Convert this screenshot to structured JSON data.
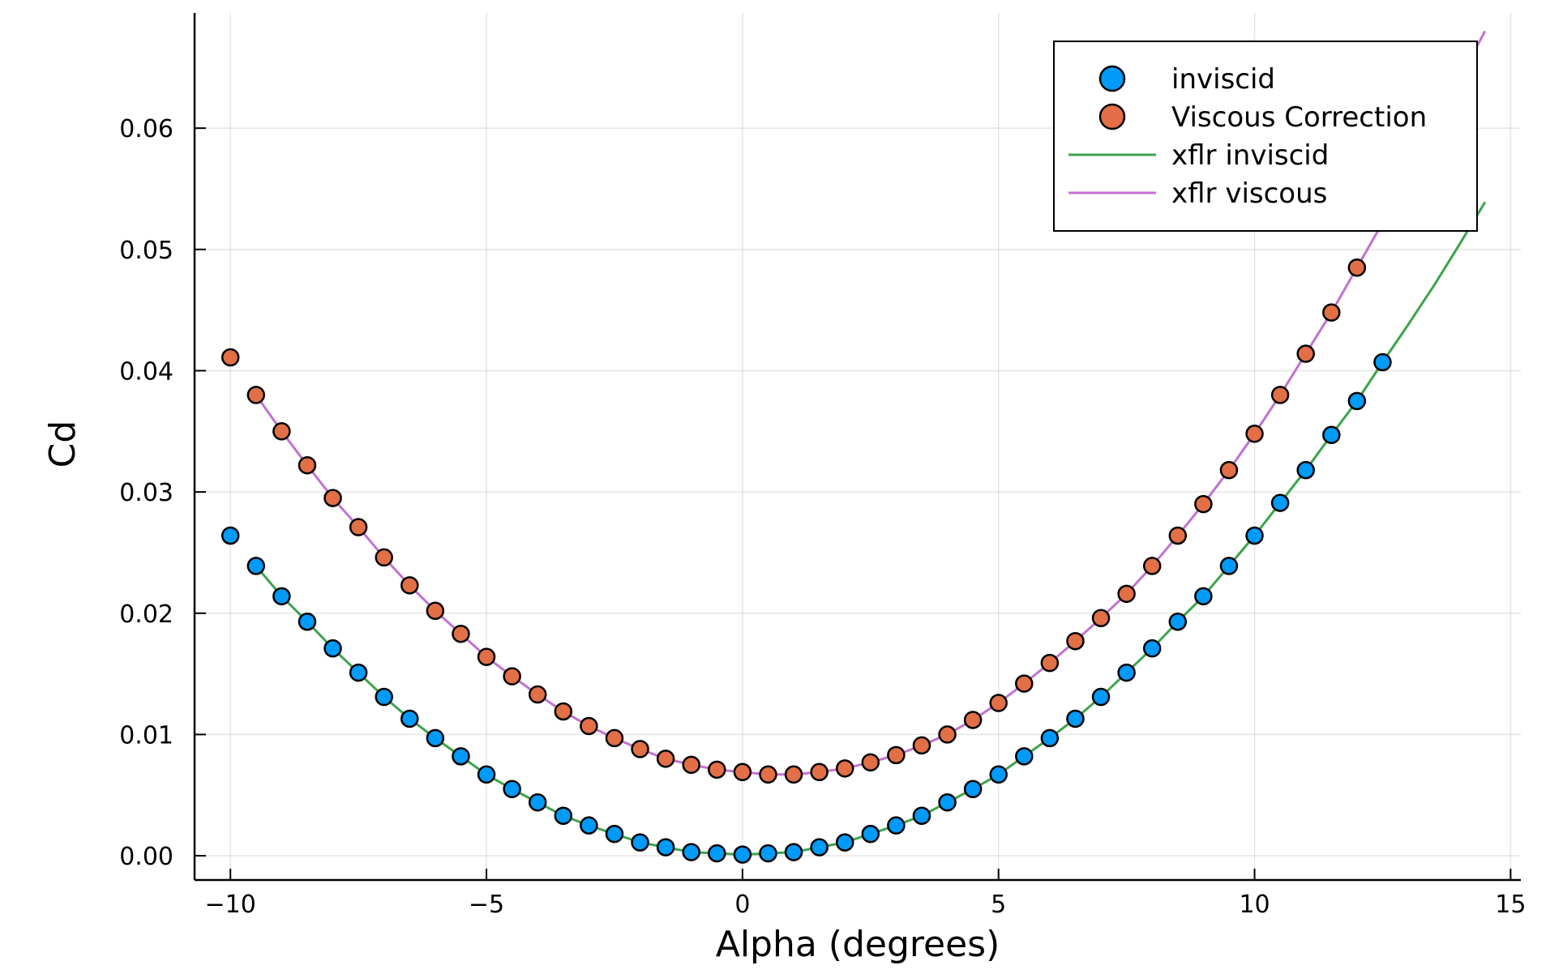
{
  "chart_data": {
    "type": "scatter",
    "xlabel": "Alpha (degrees)",
    "ylabel": "Cd",
    "xlim": [
      -10.7,
      15.2
    ],
    "ylim": [
      -0.002,
      0.0695
    ],
    "xticks": [
      -10,
      -5,
      0,
      5,
      10,
      15
    ],
    "xtick_labels": [
      "−10",
      "−5",
      "0",
      "5",
      "10",
      "15"
    ],
    "yticks": [
      0.0,
      0.01,
      0.02,
      0.03,
      0.04,
      0.05,
      0.06
    ],
    "ytick_labels": [
      "0.00",
      "0.01",
      "0.02",
      "0.03",
      "0.04",
      "0.05",
      "0.06"
    ],
    "grid": true,
    "legend_position": "top-right",
    "series": [
      {
        "name": "inviscid",
        "kind": "scatter",
        "color": "#009AF9",
        "x": [
          -10,
          -9.5,
          -9,
          -8.5,
          -8,
          -7.5,
          -7,
          -6.5,
          -6,
          -5.5,
          -5,
          -4.5,
          -4,
          -3.5,
          -3,
          -2.5,
          -2,
          -1.5,
          -1,
          -0.5,
          0,
          0.5,
          1,
          1.5,
          2,
          2.5,
          3,
          3.5,
          4,
          4.5,
          5,
          5.5,
          6,
          6.5,
          7,
          7.5,
          8,
          8.5,
          9,
          9.5,
          10,
          10.5,
          11,
          11.5,
          12,
          12.5
        ],
        "y": [
          0.0264,
          0.0239,
          0.0214,
          0.0193,
          0.0171,
          0.0151,
          0.0131,
          0.0113,
          0.0097,
          0.0082,
          0.0067,
          0.0055,
          0.0044,
          0.0033,
          0.0025,
          0.0018,
          0.0011,
          0.0007,
          0.0003,
          0.0002,
          0.0001,
          0.0002,
          0.0003,
          0.0007,
          0.0011,
          0.0018,
          0.0025,
          0.0033,
          0.0044,
          0.0055,
          0.0067,
          0.0082,
          0.0097,
          0.0113,
          0.0131,
          0.0151,
          0.0171,
          0.0193,
          0.0214,
          0.0239,
          0.0264,
          0.0291,
          0.0318,
          0.0347,
          0.0375,
          0.0407
        ]
      },
      {
        "name": "Viscous Correction",
        "kind": "scatter",
        "color": "#E26F46",
        "x": [
          -10,
          -9.5,
          -9,
          -8.5,
          -8,
          -7.5,
          -7,
          -6.5,
          -6,
          -5.5,
          -5,
          -4.5,
          -4,
          -3.5,
          -3,
          -2.5,
          -2,
          -1.5,
          -1,
          -0.5,
          0,
          0.5,
          1,
          1.5,
          2,
          2.5,
          3,
          3.5,
          4,
          4.5,
          5,
          5.5,
          6,
          6.5,
          7,
          7.5,
          8,
          8.5,
          9,
          9.5,
          10,
          10.5,
          11,
          11.5,
          12,
          12.5
        ],
        "y": [
          0.0411,
          0.038,
          0.035,
          0.0322,
          0.0295,
          0.0271,
          0.0246,
          0.0223,
          0.0202,
          0.0183,
          0.0164,
          0.0148,
          0.0133,
          0.0119,
          0.0107,
          0.0097,
          0.0088,
          0.008,
          0.0075,
          0.0071,
          0.0069,
          0.0067,
          0.0067,
          0.0069,
          0.0072,
          0.0077,
          0.0083,
          0.0091,
          0.01,
          0.0112,
          0.0126,
          0.0142,
          0.0159,
          0.0177,
          0.0196,
          0.0216,
          0.0239,
          0.0264,
          0.029,
          0.0318,
          0.0348,
          0.038,
          0.0414,
          0.0448,
          0.0485,
          0.0522
        ]
      },
      {
        "name": "xflr inviscid",
        "kind": "line",
        "color": "#3DA44D",
        "x": [
          -9.5,
          -9,
          -8.5,
          -8,
          -7.5,
          -7,
          -6.5,
          -6,
          -5.5,
          -5,
          -4.5,
          -4,
          -3.5,
          -3,
          -2.5,
          -2,
          -1.5,
          -1,
          -0.5,
          0,
          0.5,
          1,
          1.5,
          2,
          2.5,
          3,
          3.5,
          4,
          4.5,
          5,
          5.5,
          6,
          6.5,
          7,
          7.5,
          8,
          8.5,
          9,
          9.5,
          10,
          10.5,
          11,
          11.5,
          12,
          12.5,
          13,
          13.5,
          14,
          14.5
        ],
        "y": [
          0.0239,
          0.0214,
          0.0193,
          0.0171,
          0.0151,
          0.0131,
          0.0113,
          0.0097,
          0.0082,
          0.0067,
          0.0055,
          0.0044,
          0.0033,
          0.0025,
          0.0018,
          0.0011,
          0.0007,
          0.0003,
          0.0002,
          0.0001,
          0.0002,
          0.0003,
          0.0007,
          0.0011,
          0.0018,
          0.0025,
          0.0033,
          0.0044,
          0.0055,
          0.0067,
          0.0082,
          0.0097,
          0.0113,
          0.0131,
          0.0151,
          0.0171,
          0.0193,
          0.0214,
          0.0239,
          0.0264,
          0.0291,
          0.0318,
          0.0347,
          0.0375,
          0.0407,
          0.0438,
          0.047,
          0.0504,
          0.0539
        ]
      },
      {
        "name": "xflr viscous",
        "kind": "line",
        "color": "#C271D2",
        "x": [
          -9.5,
          -9,
          -8.5,
          -8,
          -7.5,
          -7,
          -6.5,
          -6,
          -5.5,
          -5,
          -4.5,
          -4,
          -3.5,
          -3,
          -2.5,
          -2,
          -1.5,
          -1,
          -0.5,
          0,
          0.5,
          1,
          1.5,
          2,
          2.5,
          3,
          3.5,
          4,
          4.5,
          5,
          5.5,
          6,
          6.5,
          7,
          7.5,
          8,
          8.5,
          9,
          9.5,
          10,
          10.5,
          11,
          11.5,
          12,
          12.5,
          13,
          13.5,
          14,
          14.5
        ],
        "y": [
          0.038,
          0.035,
          0.0322,
          0.0295,
          0.0271,
          0.0246,
          0.0223,
          0.0202,
          0.0183,
          0.0164,
          0.0148,
          0.0133,
          0.0119,
          0.0107,
          0.0097,
          0.0088,
          0.008,
          0.0075,
          0.0071,
          0.0069,
          0.0067,
          0.0067,
          0.0069,
          0.0072,
          0.0077,
          0.0083,
          0.0091,
          0.01,
          0.0112,
          0.0126,
          0.0142,
          0.0159,
          0.0177,
          0.0196,
          0.0216,
          0.0239,
          0.0264,
          0.029,
          0.0318,
          0.0348,
          0.038,
          0.0414,
          0.0448,
          0.0485,
          0.0522,
          0.056,
          0.06,
          0.064,
          0.068
        ]
      }
    ]
  }
}
